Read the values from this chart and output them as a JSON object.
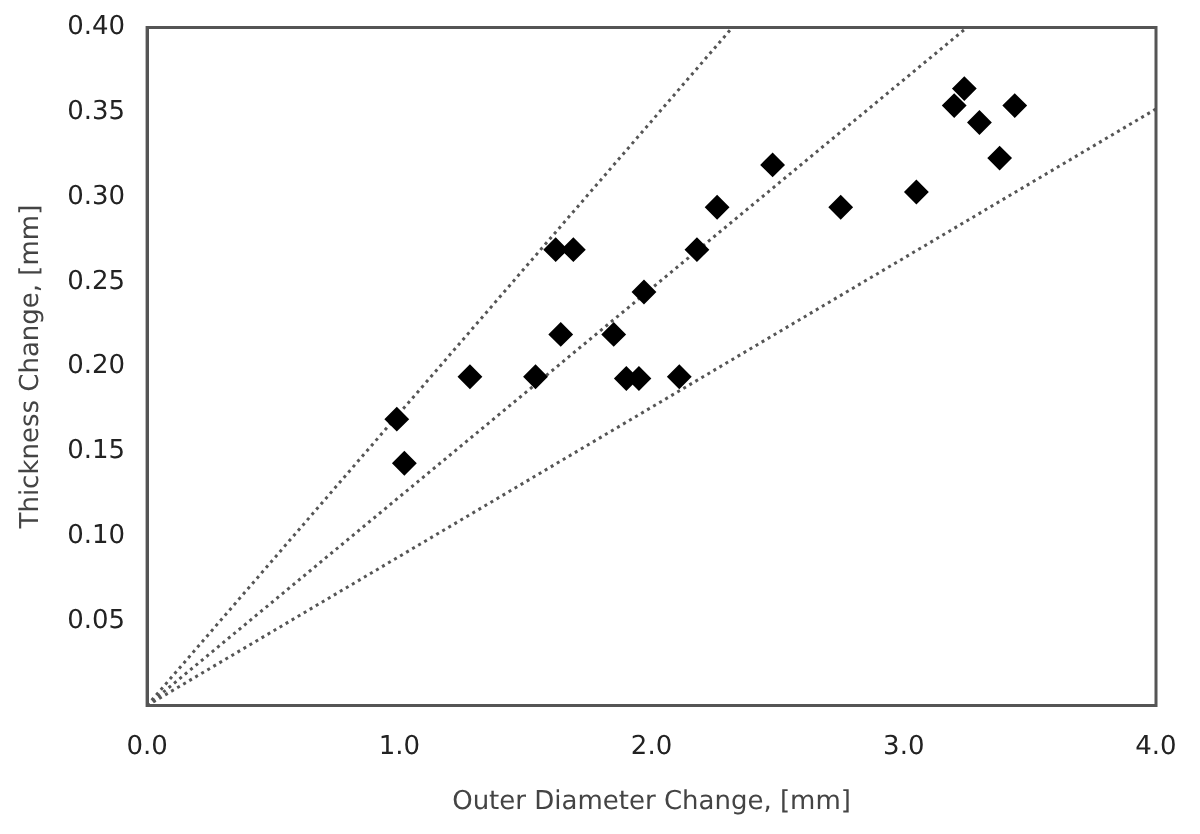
{
  "chart_data": {
    "type": "scatter",
    "xlabel": "Outer Diameter Change, [mm]",
    "ylabel": "Thickness Change, [mm]",
    "xlim": [
      0,
      4
    ],
    "ylim": [
      0,
      0.4
    ],
    "xticks": [
      {
        "value": 0,
        "label": "0.0"
      },
      {
        "value": 1,
        "label": "1.0"
      },
      {
        "value": 2,
        "label": "2.0"
      },
      {
        "value": 3,
        "label": "3.0"
      },
      {
        "value": 4,
        "label": "4.0"
      }
    ],
    "yticks": [
      {
        "value": 0.05,
        "label": "0.05"
      },
      {
        "value": 0.1,
        "label": "0.10"
      },
      {
        "value": 0.15,
        "label": "0.15"
      },
      {
        "value": 0.2,
        "label": "0.20"
      },
      {
        "value": 0.25,
        "label": "0.25"
      },
      {
        "value": 0.3,
        "label": "0.30"
      },
      {
        "value": 0.35,
        "label": "0.35"
      },
      {
        "value": 0.4,
        "label": "0.40"
      }
    ],
    "grid": false,
    "legend": false,
    "marker": "diamond",
    "series": [
      {
        "color": "#000000",
        "x": [
          0.99,
          1.02,
          1.28,
          1.62,
          1.69,
          1.64,
          1.54,
          1.85,
          1.97,
          1.9,
          1.95,
          2.11,
          2.18,
          2.26,
          2.48,
          2.75,
          3.05,
          3.2,
          3.24,
          3.3,
          3.44,
          3.38
        ],
        "values": [
          0.169,
          0.143,
          0.194,
          0.269,
          0.269,
          0.219,
          0.194,
          0.219,
          0.244,
          0.193,
          0.193,
          0.194,
          0.269,
          0.294,
          0.319,
          0.294,
          0.303,
          0.354,
          0.364,
          0.344,
          0.354,
          0.323
        ]
      },
      {
        "type": "line",
        "color": "#555555",
        "marker": "none",
        "line_style": "dotted",
        "x": [
          0,
          2.32
        ],
        "values": [
          0,
          0.4
        ]
      },
      {
        "type": "line",
        "color": "#555555",
        "marker": "none",
        "line_style": "dotted",
        "x": [
          0,
          3.25
        ],
        "values": [
          0,
          0.4
        ]
      },
      {
        "type": "line",
        "color": "#555555",
        "marker": "none",
        "line_style": "dotted",
        "x": [
          0,
          4
        ],
        "values": [
          0,
          0.352
        ]
      }
    ]
  }
}
